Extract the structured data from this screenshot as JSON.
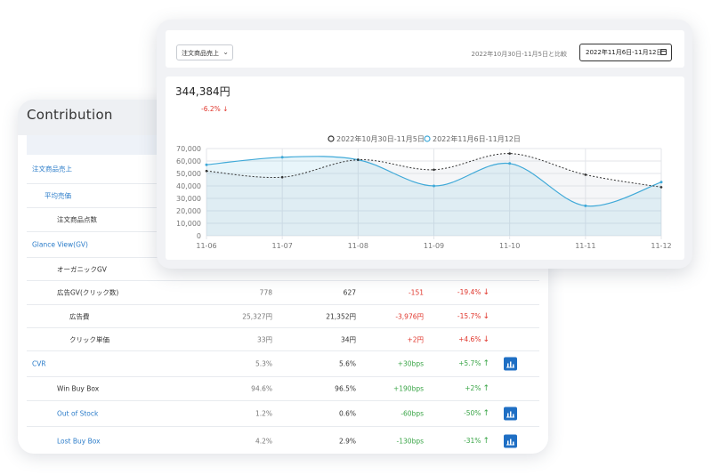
{
  "contribution": {
    "title": "Contribution",
    "rows": [
      {
        "label": "注文商品売上",
        "level": 0,
        "style": "link",
        "height": 32,
        "prev": "",
        "cur": "",
        "diff": "",
        "pct": "",
        "trend": "",
        "chart": false
      },
      {
        "label": "平均売価",
        "level": 1,
        "style": "link",
        "height": 26,
        "prev": "",
        "cur": "",
        "diff": "",
        "pct": "",
        "trend": "",
        "chart": false
      },
      {
        "label": "注文商品点数",
        "level": 2,
        "style": "plain",
        "height": 26,
        "prev": "",
        "cur": "",
        "diff": "",
        "pct": "",
        "trend": "",
        "chart": false
      },
      {
        "label": "Glance View(GV)",
        "level": 0,
        "style": "link",
        "height": 28,
        "prev": "",
        "cur": "",
        "diff": "",
        "pct": "",
        "trend": "",
        "chart": false
      },
      {
        "label": "オーガニックGV",
        "level": 2,
        "style": "plain",
        "height": 25,
        "prev": "",
        "cur": "",
        "diff": "",
        "pct": "",
        "trend": "",
        "chart": false
      },
      {
        "label": "広告GV(クリック数)",
        "level": 2,
        "style": "plain",
        "height": 26,
        "prev": "778",
        "cur": "627",
        "diff": "-151",
        "pct": "-19.4%",
        "trend": "down",
        "chart": false
      },
      {
        "label": "広告費",
        "level": 3,
        "style": "plain",
        "height": 25,
        "prev": "25,327円",
        "cur": "21,352円",
        "diff": "-3,976円",
        "pct": "-15.7%",
        "trend": "down",
        "chart": false
      },
      {
        "label": "クリック単価",
        "level": 3,
        "style": "plain",
        "height": 25,
        "prev": "33円",
        "cur": "34円",
        "diff": "+2円",
        "pct": "+4.6%",
        "trend": "down-neg",
        "chart": false
      },
      {
        "label": "CVR",
        "level": 0,
        "style": "link",
        "height": 28,
        "prev": "5.3%",
        "cur": "5.6%",
        "diff": "+30bps",
        "pct": "+5.7%",
        "trend": "up",
        "chart": true
      },
      {
        "label": "Win Buy Box",
        "level": 2,
        "style": "plain",
        "height": 26,
        "prev": "94.6%",
        "cur": "96.5%",
        "diff": "+190bps",
        "pct": "+2%",
        "trend": "up",
        "chart": false
      },
      {
        "label": "Out of Stock",
        "level": 2,
        "style": "link",
        "height": 28,
        "prev": "1.2%",
        "cur": "0.6%",
        "diff": "-60bps",
        "pct": "-50%",
        "trend": "up",
        "chart": true
      },
      {
        "label": "Lost Buy Box",
        "level": 2,
        "style": "link",
        "height": 32,
        "prev": "4.2%",
        "cur": "2.9%",
        "diff": "-130bps",
        "pct": "-31%",
        "trend": "up",
        "chart": true
      }
    ]
  },
  "toolbar": {
    "metric_select": "注文商品売上",
    "compare_text": "2022年10月30日-11月5日と比較",
    "date_range": "2022年11月6日-11月12日"
  },
  "summary": {
    "value": "344,384円",
    "delta": "-6.2%"
  },
  "icons": {
    "dropdown": "chevron-down-icon",
    "calendar": "calendar-icon",
    "bar_chart": "bar-chart-icon",
    "trend_up": "arrow-up-icon",
    "trend_down": "arrow-down-icon"
  },
  "colors": {
    "link": "#2b7cc9",
    "negative": "#e0352b",
    "positive": "#3aa547",
    "button": "#1f6fc4",
    "current_series": "#3fa9d8",
    "previous_series": "#333333"
  },
  "chart_data": {
    "type": "line",
    "categories": [
      "11-06",
      "11-07",
      "11-08",
      "11-09",
      "11-10",
      "11-11",
      "11-12"
    ],
    "ylim": [
      0,
      70000
    ],
    "yticks": [
      "0",
      "10,000",
      "20,000",
      "30,000",
      "40,000",
      "50,000",
      "60,000",
      "70,000"
    ],
    "grid": true,
    "legend_position": "top",
    "series": [
      {
        "name": "2022年10月30日-11月5日",
        "style": "dotted",
        "color": "#333333",
        "values": [
          52000,
          47000,
          61000,
          53000,
          66000,
          49000,
          39000
        ]
      },
      {
        "name": "2022年11月6日-11月12日",
        "style": "solid-area",
        "color": "#3fa9d8",
        "values": [
          57000,
          63000,
          61000,
          40000,
          58000,
          24000,
          43000
        ]
      }
    ]
  }
}
